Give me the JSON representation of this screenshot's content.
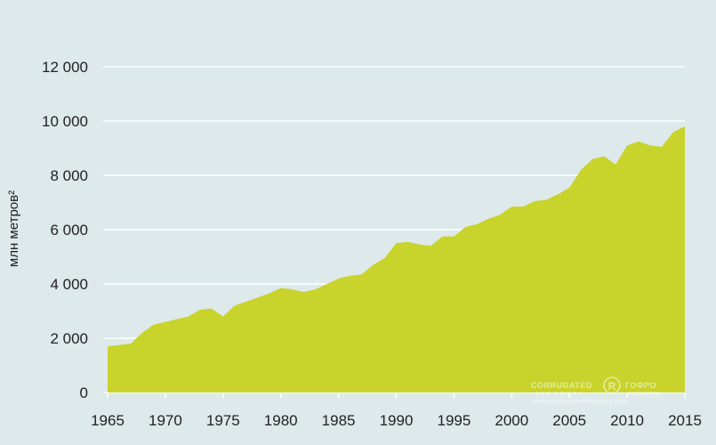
{
  "chart_data": {
    "type": "area",
    "ylabel": "млн метров²",
    "xlim": [
      1965,
      2015
    ],
    "ylim": [
      0,
      12000
    ],
    "yticks": [
      0,
      2000,
      4000,
      6000,
      8000,
      10000,
      12000
    ],
    "ytick_labels": [
      "0",
      "2 000",
      "4 000",
      "6 000",
      "8 000",
      "10 000",
      "12 000"
    ],
    "xticks": [
      1965,
      1970,
      1975,
      1980,
      1985,
      1990,
      1995,
      2000,
      2005,
      2010,
      2015
    ],
    "xtick_labels": [
      "1965",
      "1970",
      "1975",
      "1980",
      "1985",
      "1990",
      "1995",
      "2000",
      "2005",
      "2010",
      "2015"
    ],
    "grid": true,
    "colors": {
      "area": "#c8d32b",
      "background": "#dde9ea",
      "grid": "#ffffff"
    },
    "x": [
      1965,
      1966,
      1967,
      1968,
      1969,
      1970,
      1971,
      1972,
      1973,
      1974,
      1975,
      1976,
      1977,
      1978,
      1979,
      1980,
      1981,
      1982,
      1983,
      1984,
      1985,
      1986,
      1987,
      1988,
      1989,
      1990,
      1991,
      1992,
      1993,
      1994,
      1995,
      1996,
      1997,
      1998,
      1999,
      2000,
      2001,
      2002,
      2003,
      2004,
      2005,
      2006,
      2007,
      2008,
      2009,
      2010,
      2011,
      2012,
      2013,
      2014,
      2015
    ],
    "values": [
      1700,
      1750,
      1800,
      2200,
      2500,
      2600,
      2700,
      2800,
      3050,
      3100,
      2800,
      3200,
      3350,
      3500,
      3650,
      3850,
      3800,
      3700,
      3800,
      4000,
      4200,
      4300,
      4350,
      4700,
      4950,
      5500,
      5550,
      5450,
      5400,
      5750,
      5750,
      6100,
      6200,
      6400,
      6550,
      6850,
      6850,
      7050,
      7100,
      7300,
      7550,
      8200,
      8600,
      8700,
      8400,
      9100,
      9250,
      9100,
      9050,
      9600,
      9800
    ],
    "watermark": {
      "logo_left_lines": [
        "CORRUGATED",
        "INDUSTRY"
      ],
      "logo_right_lines": [
        "ГОФРО",
        "ИНДУСТРИЯ"
      ],
      "symbol": "R",
      "url": "www.corrugatedindustry.com"
    }
  }
}
